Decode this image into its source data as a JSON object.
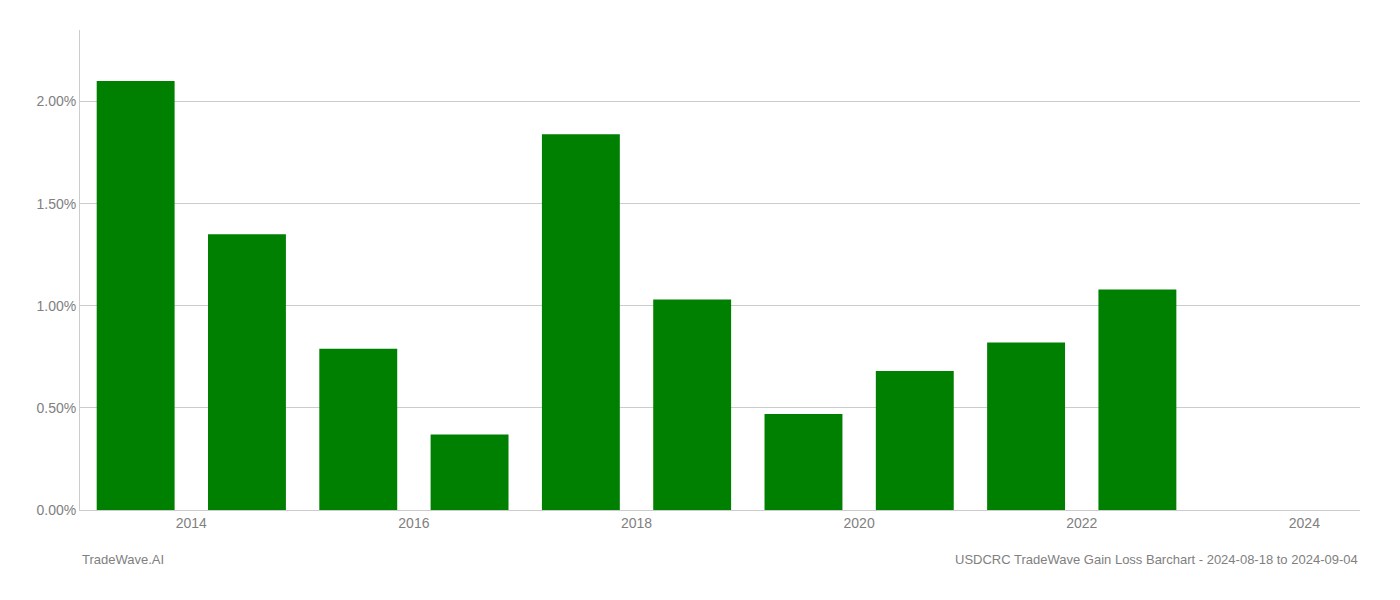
{
  "chart_data": {
    "type": "bar",
    "x": [
      2013.5,
      2014.5,
      2015.5,
      2016.5,
      2017.5,
      2018.5,
      2019.5,
      2020.5,
      2021.5,
      2022.5,
      2023.5
    ],
    "values": [
      0.021,
      0.0135,
      0.0079,
      0.0037,
      0.0184,
      0.0103,
      0.0047,
      0.0068,
      0.0082,
      0.0108,
      0.0
    ],
    "color": "#008000",
    "xlim": [
      2013.0,
      2024.5
    ],
    "xticks": [
      2014,
      2016,
      2018,
      2020,
      2022,
      2024
    ],
    "ylim": [
      0.0,
      0.0235
    ],
    "yticks": [
      {
        "value": 0.0,
        "label": "0.00%"
      },
      {
        "value": 0.005,
        "label": "0.50%"
      },
      {
        "value": 0.01,
        "label": "1.00%"
      },
      {
        "value": 0.015,
        "label": "1.50%"
      },
      {
        "value": 0.02,
        "label": "2.00%"
      }
    ],
    "grid": true,
    "annotations": [
      "TradeWave.AI",
      "USDCRC TradeWave Gain Loss Barchart - 2024-08-18 to 2024-09-04"
    ]
  }
}
